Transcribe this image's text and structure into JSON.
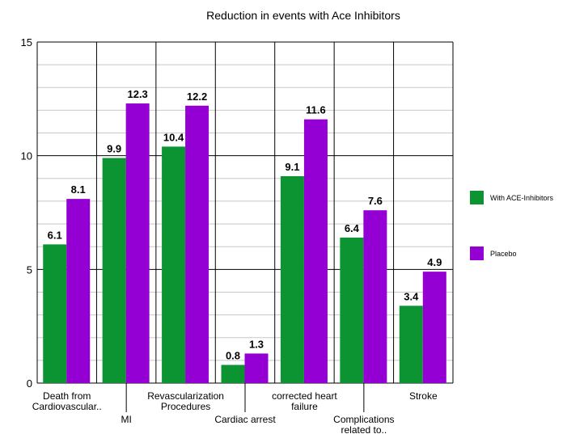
{
  "chart_data": {
    "type": "bar",
    "title": "Reduction in events with Ace Inhibitors",
    "categories": [
      [
        "Death from",
        "Cardiovascular.."
      ],
      [
        "MI"
      ],
      [
        "Revascularization",
        "Procedures"
      ],
      [
        "Cardiac arrest"
      ],
      [
        "corrected heart",
        "failure"
      ],
      [
        "Complications",
        "related to.."
      ],
      [
        "Stroke"
      ]
    ],
    "series": [
      {
        "name": "With ACE-Inhibitors",
        "color": "#0c9432",
        "values": [
          6.1,
          9.9,
          10.4,
          0.8,
          9.1,
          6.4,
          3.4
        ]
      },
      {
        "name": "Placebo",
        "color": "#9400d3",
        "values": [
          8.1,
          12.3,
          12.2,
          1.3,
          11.6,
          7.6,
          4.9
        ]
      }
    ],
    "ylim": [
      0,
      15
    ],
    "y_ticks": [
      0,
      5,
      10,
      15
    ],
    "minor_grid_step": 1,
    "grid": true,
    "legend_position": "right",
    "xlabel": "",
    "ylabel": ""
  }
}
